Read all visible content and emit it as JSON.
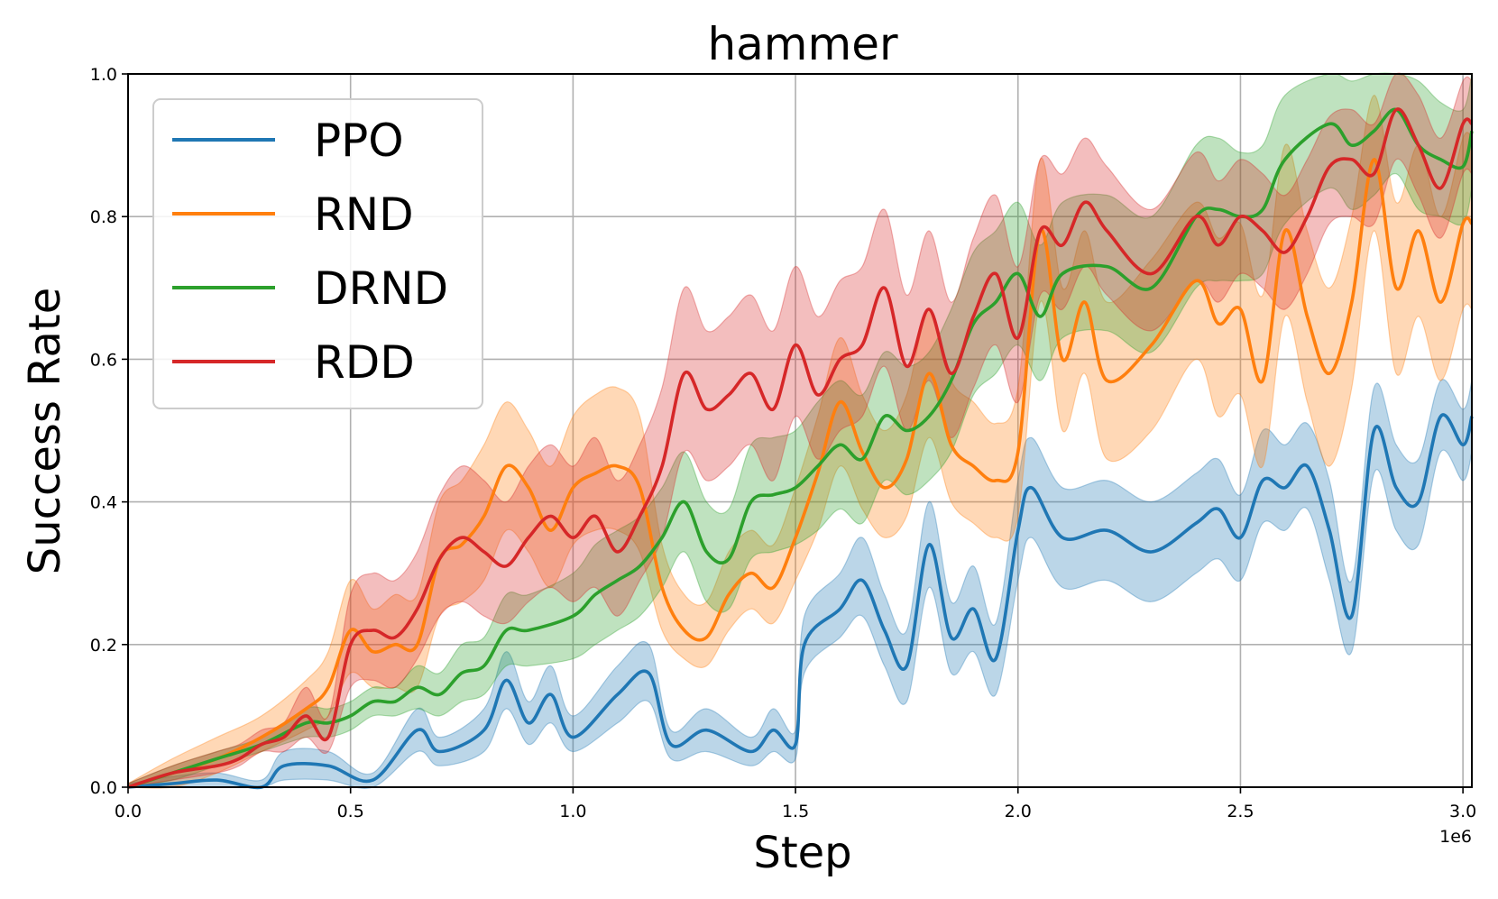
{
  "chart_data": {
    "type": "line",
    "title": "hammer",
    "xlabel": "Step",
    "ylabel": "Success Rate",
    "x_scale_label": "1e6",
    "xlim": [
      0,
      3.02
    ],
    "ylim": [
      0,
      1.0
    ],
    "xticks": [
      "0.0",
      "0.5",
      "1.0",
      "1.5",
      "2.0",
      "2.5",
      "3.0"
    ],
    "yticks": [
      "0.0",
      "0.2",
      "0.4",
      "0.6",
      "0.8",
      "1.0"
    ],
    "grid": true,
    "legend_position": "upper-left",
    "series": [
      {
        "name": "PPO",
        "color": "#1f77b4",
        "x": [
          0,
          0.1,
          0.2,
          0.3,
          0.35,
          0.45,
          0.55,
          0.65,
          0.7,
          0.8,
          0.85,
          0.9,
          0.95,
          1.0,
          1.1,
          1.17,
          1.22,
          1.3,
          1.4,
          1.45,
          1.5,
          1.52,
          1.6,
          1.65,
          1.7,
          1.75,
          1.8,
          1.85,
          1.9,
          1.95,
          2.0,
          2.03,
          2.1,
          2.2,
          2.3,
          2.4,
          2.45,
          2.5,
          2.55,
          2.6,
          2.65,
          2.7,
          2.75,
          2.8,
          2.85,
          2.9,
          2.95,
          3.0,
          3.02
        ],
        "y": [
          0,
          0.005,
          0.01,
          0.0,
          0.03,
          0.03,
          0.01,
          0.08,
          0.05,
          0.08,
          0.15,
          0.09,
          0.13,
          0.07,
          0.13,
          0.16,
          0.06,
          0.08,
          0.05,
          0.08,
          0.06,
          0.2,
          0.25,
          0.29,
          0.22,
          0.17,
          0.34,
          0.21,
          0.25,
          0.18,
          0.36,
          0.42,
          0.35,
          0.36,
          0.33,
          0.37,
          0.39,
          0.35,
          0.43,
          0.42,
          0.45,
          0.36,
          0.24,
          0.5,
          0.42,
          0.4,
          0.52,
          0.48,
          0.52
        ],
        "lower": [
          0,
          0.0,
          0.0,
          0.0,
          0.01,
          0.01,
          0.0,
          0.05,
          0.03,
          0.05,
          0.11,
          0.06,
          0.09,
          0.05,
          0.09,
          0.12,
          0.04,
          0.05,
          0.03,
          0.05,
          0.04,
          0.16,
          0.21,
          0.24,
          0.17,
          0.12,
          0.28,
          0.16,
          0.19,
          0.13,
          0.29,
          0.35,
          0.28,
          0.29,
          0.26,
          0.3,
          0.32,
          0.29,
          0.37,
          0.36,
          0.39,
          0.29,
          0.19,
          0.44,
          0.36,
          0.34,
          0.47,
          0.43,
          0.47
        ],
        "upper": [
          0.005,
          0.015,
          0.02,
          0.01,
          0.05,
          0.05,
          0.02,
          0.11,
          0.07,
          0.11,
          0.19,
          0.12,
          0.17,
          0.1,
          0.17,
          0.2,
          0.08,
          0.11,
          0.07,
          0.11,
          0.08,
          0.24,
          0.3,
          0.35,
          0.27,
          0.22,
          0.4,
          0.26,
          0.31,
          0.23,
          0.43,
          0.49,
          0.42,
          0.43,
          0.4,
          0.44,
          0.46,
          0.41,
          0.5,
          0.48,
          0.51,
          0.43,
          0.29,
          0.56,
          0.48,
          0.46,
          0.57,
          0.53,
          0.57
        ]
      },
      {
        "name": "RND",
        "color": "#ff7f0e",
        "x": [
          0,
          0.1,
          0.2,
          0.3,
          0.4,
          0.45,
          0.5,
          0.55,
          0.6,
          0.65,
          0.7,
          0.75,
          0.8,
          0.85,
          0.9,
          0.95,
          1.0,
          1.05,
          1.1,
          1.15,
          1.2,
          1.25,
          1.3,
          1.35,
          1.4,
          1.45,
          1.5,
          1.55,
          1.6,
          1.65,
          1.7,
          1.75,
          1.8,
          1.85,
          1.9,
          1.95,
          2.0,
          2.05,
          2.1,
          2.15,
          2.2,
          2.3,
          2.4,
          2.45,
          2.5,
          2.55,
          2.6,
          2.65,
          2.7,
          2.75,
          2.8,
          2.85,
          2.9,
          2.95,
          3.0,
          3.02
        ],
        "y": [
          0,
          0.02,
          0.04,
          0.07,
          0.11,
          0.14,
          0.22,
          0.19,
          0.2,
          0.2,
          0.32,
          0.34,
          0.38,
          0.45,
          0.42,
          0.36,
          0.42,
          0.44,
          0.45,
          0.42,
          0.28,
          0.22,
          0.21,
          0.27,
          0.3,
          0.28,
          0.35,
          0.44,
          0.54,
          0.47,
          0.42,
          0.46,
          0.58,
          0.48,
          0.45,
          0.43,
          0.47,
          0.78,
          0.6,
          0.68,
          0.57,
          0.62,
          0.71,
          0.65,
          0.67,
          0.57,
          0.78,
          0.66,
          0.58,
          0.68,
          0.88,
          0.7,
          0.78,
          0.68,
          0.79,
          0.79
        ],
        "lower": [
          0,
          0.0,
          0.02,
          0.05,
          0.08,
          0.1,
          0.16,
          0.14,
          0.14,
          0.14,
          0.24,
          0.26,
          0.29,
          0.36,
          0.33,
          0.28,
          0.34,
          0.36,
          0.36,
          0.33,
          0.22,
          0.18,
          0.17,
          0.22,
          0.25,
          0.23,
          0.29,
          0.36,
          0.45,
          0.39,
          0.35,
          0.38,
          0.49,
          0.4,
          0.37,
          0.35,
          0.38,
          0.68,
          0.5,
          0.58,
          0.46,
          0.5,
          0.6,
          0.52,
          0.55,
          0.45,
          0.66,
          0.54,
          0.45,
          0.56,
          0.78,
          0.58,
          0.66,
          0.57,
          0.67,
          0.67
        ],
        "upper": [
          0.005,
          0.04,
          0.07,
          0.1,
          0.15,
          0.19,
          0.29,
          0.25,
          0.27,
          0.27,
          0.4,
          0.43,
          0.48,
          0.54,
          0.5,
          0.45,
          0.52,
          0.55,
          0.56,
          0.52,
          0.34,
          0.27,
          0.26,
          0.33,
          0.36,
          0.34,
          0.42,
          0.52,
          0.63,
          0.55,
          0.5,
          0.55,
          0.67,
          0.57,
          0.54,
          0.51,
          0.56,
          0.88,
          0.7,
          0.78,
          0.68,
          0.74,
          0.82,
          0.77,
          0.79,
          0.69,
          0.9,
          0.78,
          0.7,
          0.8,
          0.97,
          0.82,
          0.9,
          0.8,
          0.91,
          0.91
        ]
      },
      {
        "name": "DRND",
        "color": "#2ca02c",
        "x": [
          0,
          0.1,
          0.2,
          0.3,
          0.4,
          0.45,
          0.5,
          0.55,
          0.6,
          0.65,
          0.7,
          0.75,
          0.8,
          0.85,
          0.9,
          1.0,
          1.05,
          1.1,
          1.15,
          1.2,
          1.25,
          1.3,
          1.35,
          1.4,
          1.45,
          1.5,
          1.55,
          1.6,
          1.65,
          1.7,
          1.75,
          1.8,
          1.85,
          1.9,
          1.95,
          2.0,
          2.05,
          2.1,
          2.2,
          2.3,
          2.4,
          2.45,
          2.5,
          2.55,
          2.6,
          2.7,
          2.75,
          2.8,
          2.85,
          2.9,
          2.95,
          3.0,
          3.02
        ],
        "y": [
          0,
          0.02,
          0.04,
          0.06,
          0.09,
          0.09,
          0.1,
          0.12,
          0.12,
          0.14,
          0.13,
          0.16,
          0.17,
          0.22,
          0.22,
          0.24,
          0.27,
          0.29,
          0.31,
          0.35,
          0.4,
          0.33,
          0.32,
          0.4,
          0.41,
          0.42,
          0.45,
          0.48,
          0.46,
          0.52,
          0.5,
          0.52,
          0.57,
          0.65,
          0.68,
          0.72,
          0.66,
          0.72,
          0.73,
          0.7,
          0.8,
          0.81,
          0.8,
          0.81,
          0.88,
          0.93,
          0.9,
          0.92,
          0.95,
          0.9,
          0.88,
          0.87,
          0.92
        ],
        "lower": [
          0,
          0.01,
          0.03,
          0.05,
          0.07,
          0.07,
          0.08,
          0.1,
          0.1,
          0.11,
          0.1,
          0.12,
          0.13,
          0.17,
          0.17,
          0.18,
          0.2,
          0.22,
          0.24,
          0.28,
          0.33,
          0.26,
          0.25,
          0.32,
          0.33,
          0.34,
          0.36,
          0.39,
          0.37,
          0.43,
          0.41,
          0.43,
          0.47,
          0.55,
          0.58,
          0.62,
          0.57,
          0.63,
          0.64,
          0.61,
          0.7,
          0.71,
          0.71,
          0.72,
          0.79,
          0.84,
          0.81,
          0.83,
          0.86,
          0.81,
          0.8,
          0.79,
          0.84
        ],
        "upper": [
          0.005,
          0.03,
          0.05,
          0.07,
          0.11,
          0.11,
          0.12,
          0.14,
          0.14,
          0.17,
          0.16,
          0.2,
          0.21,
          0.27,
          0.27,
          0.3,
          0.34,
          0.36,
          0.38,
          0.42,
          0.47,
          0.4,
          0.39,
          0.48,
          0.49,
          0.5,
          0.54,
          0.57,
          0.55,
          0.61,
          0.59,
          0.61,
          0.67,
          0.75,
          0.78,
          0.82,
          0.76,
          0.82,
          0.83,
          0.8,
          0.9,
          0.91,
          0.89,
          0.9,
          0.97,
          1.0,
          0.99,
          1.0,
          1.0,
          0.99,
          0.96,
          0.95,
          1.0
        ]
      },
      {
        "name": "RDD",
        "color": "#d62728",
        "x": [
          0,
          0.1,
          0.2,
          0.25,
          0.3,
          0.35,
          0.4,
          0.45,
          0.5,
          0.55,
          0.6,
          0.65,
          0.7,
          0.75,
          0.8,
          0.85,
          0.9,
          0.95,
          1.0,
          1.05,
          1.1,
          1.15,
          1.2,
          1.25,
          1.3,
          1.35,
          1.4,
          1.45,
          1.5,
          1.55,
          1.6,
          1.65,
          1.7,
          1.75,
          1.8,
          1.85,
          1.9,
          1.95,
          2.0,
          2.05,
          2.1,
          2.15,
          2.2,
          2.3,
          2.4,
          2.45,
          2.5,
          2.55,
          2.6,
          2.65,
          2.7,
          2.75,
          2.8,
          2.85,
          2.9,
          2.95,
          3.0,
          3.02
        ],
        "y": [
          0,
          0.02,
          0.03,
          0.04,
          0.06,
          0.07,
          0.1,
          0.07,
          0.2,
          0.22,
          0.21,
          0.25,
          0.32,
          0.35,
          0.33,
          0.31,
          0.35,
          0.38,
          0.35,
          0.38,
          0.33,
          0.38,
          0.45,
          0.58,
          0.53,
          0.55,
          0.58,
          0.53,
          0.62,
          0.55,
          0.6,
          0.62,
          0.7,
          0.59,
          0.67,
          0.58,
          0.66,
          0.72,
          0.63,
          0.78,
          0.76,
          0.82,
          0.78,
          0.72,
          0.8,
          0.76,
          0.8,
          0.78,
          0.75,
          0.8,
          0.87,
          0.88,
          0.86,
          0.95,
          0.9,
          0.84,
          0.93,
          0.93
        ],
        "lower": [
          0,
          0.01,
          0.02,
          0.03,
          0.05,
          0.05,
          0.07,
          0.05,
          0.14,
          0.15,
          0.14,
          0.18,
          0.24,
          0.26,
          0.24,
          0.23,
          0.26,
          0.28,
          0.26,
          0.28,
          0.24,
          0.29,
          0.35,
          0.47,
          0.43,
          0.45,
          0.48,
          0.43,
          0.52,
          0.46,
          0.5,
          0.52,
          0.59,
          0.5,
          0.57,
          0.49,
          0.56,
          0.62,
          0.54,
          0.69,
          0.67,
          0.73,
          0.69,
          0.64,
          0.71,
          0.68,
          0.72,
          0.7,
          0.67,
          0.72,
          0.79,
          0.8,
          0.79,
          0.88,
          0.83,
          0.77,
          0.86,
          0.86
        ],
        "upper": [
          0.005,
          0.03,
          0.05,
          0.06,
          0.08,
          0.09,
          0.14,
          0.1,
          0.27,
          0.3,
          0.29,
          0.33,
          0.41,
          0.45,
          0.43,
          0.4,
          0.45,
          0.48,
          0.45,
          0.49,
          0.43,
          0.48,
          0.56,
          0.7,
          0.64,
          0.66,
          0.69,
          0.64,
          0.73,
          0.66,
          0.71,
          0.73,
          0.81,
          0.69,
          0.78,
          0.68,
          0.77,
          0.83,
          0.73,
          0.88,
          0.86,
          0.91,
          0.87,
          0.81,
          0.89,
          0.85,
          0.88,
          0.86,
          0.83,
          0.88,
          0.94,
          0.95,
          0.93,
          1.0,
          0.97,
          0.91,
          0.99,
          0.99
        ]
      }
    ]
  }
}
